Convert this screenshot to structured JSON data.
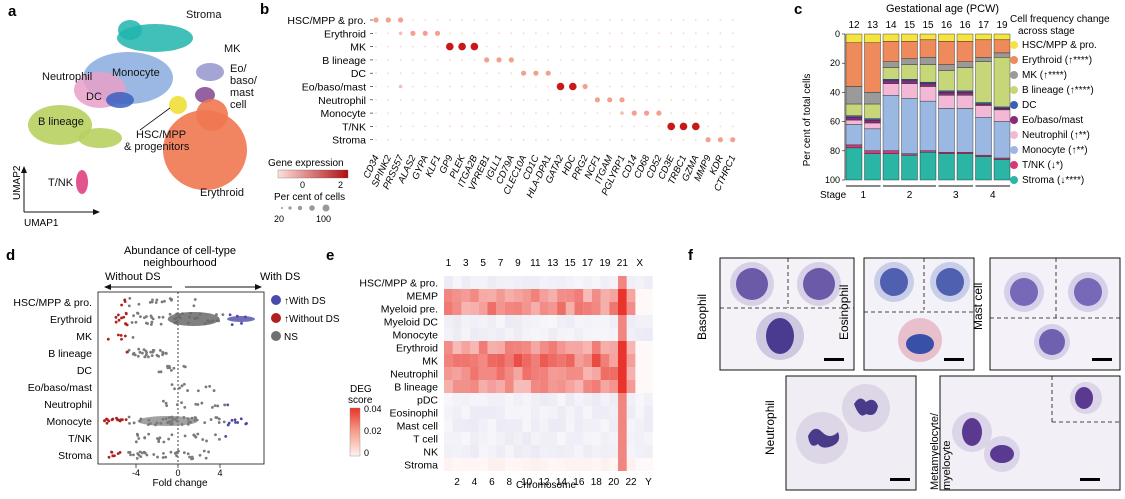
{
  "panel_letters": [
    "a",
    "b",
    "c",
    "d",
    "e",
    "f"
  ],
  "umap": {
    "axis_x": "UMAP1",
    "axis_y": "UMAP2",
    "labels": [
      {
        "text": "Stroma",
        "color": "#1fb5ad"
      },
      {
        "text": "MK",
        "color": "#8c8cc8"
      },
      {
        "text": "Eo/",
        "color": "#7a3a8a"
      },
      {
        "text": "baso/",
        "color": "#7a3a8a"
      },
      {
        "text": "mast",
        "color": "#7a3a8a"
      },
      {
        "text": "cell",
        "color": "#7a3a8a"
      },
      {
        "text": "Neutrophil",
        "color": "#e8a0c8"
      },
      {
        "text": "Monocyte",
        "color": "#8fb0e0"
      },
      {
        "text": "DC",
        "color": "#3a60c0"
      },
      {
        "text": "B lineage",
        "color": "#b8d060"
      },
      {
        "text": "HSC/MPP",
        "color": "#f0e040"
      },
      {
        "text": "& progenitors",
        "color": "#f0e040"
      },
      {
        "text": "T/NK",
        "color": "#e04080"
      },
      {
        "text": "Erythroid",
        "color": "#f07850"
      }
    ]
  },
  "dotplot": {
    "rows": [
      "HSC/MPP & pro.",
      "Erythroid",
      "MK",
      "B lineage",
      "DC",
      "Eo/baso/mast",
      "Neutrophil",
      "Monocyte",
      "T/NK",
      "Stroma"
    ],
    "genes": [
      "CD34",
      "SPINK2",
      "PRSS57",
      "ALAS2",
      "GYPA",
      "KLF1",
      "GP9",
      "PLEK",
      "ITGA2B",
      "VPREB1",
      "IGLL1",
      "CD79A",
      "CLEC10A",
      "CD1C",
      "HLA-DPA1",
      "GATA2",
      "HDC",
      "PRG2",
      "NCF1",
      "ITGAM",
      "PGLYRP1",
      "CD14",
      "CD68",
      "CD52",
      "CD3E",
      "TRBC1",
      "GZMA",
      "MMP9",
      "KDR",
      "CTHRC1"
    ],
    "legend_expression_title": "Gene expression",
    "legend_expression_ticks": [
      "0",
      "2"
    ],
    "legend_size_title": "Per cent of cells",
    "legend_size_ticks": [
      "20",
      "100"
    ]
  },
  "chart_data": [
    {
      "type": "bar",
      "stacked": true,
      "panel": "c",
      "title": "Gestational age (PCW)",
      "categories": [
        "12",
        "13",
        "14",
        "15",
        "15",
        "16",
        "16",
        "17",
        "19"
      ],
      "stage_label": "Stage",
      "stages": [
        {
          "label": "1",
          "span": [
            0,
            1
          ]
        },
        {
          "label": "2",
          "span": [
            2,
            4
          ]
        },
        {
          "label": "3",
          "span": [
            5,
            6
          ]
        },
        {
          "label": "4",
          "span": [
            7,
            8
          ]
        }
      ],
      "ylabel": "Per cent of total cells",
      "ylim": [
        0,
        100
      ],
      "y_inverted": true,
      "yticks": [
        "0",
        "20",
        "40",
        "60",
        "80",
        "100"
      ],
      "legend_title": "Cell frequency change across stage",
      "series": [
        {
          "name": "HSC/MPP & pro.",
          "color": "#f5e342",
          "values": [
            6,
            6,
            5,
            5,
            4,
            5,
            5,
            4,
            4
          ]
        },
        {
          "name": "Erythroid (↑****)",
          "color": "#ee8a5c",
          "values": [
            30,
            34,
            14,
            12,
            12,
            16,
            14,
            12,
            9
          ]
        },
        {
          "name": "MK (↑****)",
          "color": "#9a9a9a",
          "values": [
            12,
            8,
            4,
            4,
            5,
            4,
            4,
            3,
            3
          ]
        },
        {
          "name": "B lineage (↑****)",
          "color": "#c8d67a",
          "values": [
            8,
            10,
            8,
            10,
            12,
            14,
            16,
            28,
            34
          ]
        },
        {
          "name": "DC",
          "color": "#3b5fb8",
          "values": [
            1,
            1,
            1,
            1,
            1,
            1,
            1,
            1,
            1
          ]
        },
        {
          "name": "Eo/baso/mast",
          "color": "#8a2a78",
          "values": [
            2,
            2,
            2,
            2,
            2,
            2,
            2,
            1,
            1
          ]
        },
        {
          "name": "Neutrophil (↑**)",
          "color": "#f2b8d6",
          "values": [
            3,
            4,
            8,
            10,
            10,
            9,
            9,
            8,
            8
          ]
        },
        {
          "name": "Monocyte (↑**)",
          "color": "#9ab8e2",
          "values": [
            14,
            15,
            38,
            38,
            34,
            30,
            30,
            26,
            25
          ]
        },
        {
          "name": "T/NK (↓*)",
          "color": "#d8387a",
          "values": [
            2,
            2,
            2,
            1,
            1,
            1,
            1,
            1,
            1
          ]
        },
        {
          "name": "Stroma (↓****)",
          "color": "#2ab5a5",
          "values": [
            22,
            18,
            18,
            17,
            19,
            18,
            18,
            16,
            14
          ]
        }
      ]
    },
    {
      "type": "scatter",
      "panel": "d",
      "title": "Abundance of cell-type neighbourhood",
      "annot_left": "Without DS",
      "annot_right": "With DS",
      "xlabel": "Fold change",
      "xlim": [
        -8,
        8
      ],
      "xticks": [
        "-4",
        "0",
        "4"
      ],
      "categories": [
        "HSC/MPP & pro.",
        "Erythroid",
        "MK",
        "B lineage",
        "DC",
        "Eo/baso/mast",
        "Neutrophil",
        "Monocyte",
        "T/NK",
        "Stroma"
      ],
      "legend": [
        {
          "name": "↑With DS",
          "color": "#4a4aa8"
        },
        {
          "name": "↑Without DS",
          "color": "#b02020"
        },
        {
          "name": "NS",
          "color": "#707070"
        }
      ]
    },
    {
      "type": "heatmap",
      "panel": "e",
      "xlabel": "Chromosome",
      "xticks_top": [
        "1",
        "3",
        "5",
        "7",
        "9",
        "11",
        "13",
        "15",
        "17",
        "19",
        "21",
        "X"
      ],
      "xticks_bottom": [
        "2",
        "4",
        "6",
        "8",
        "10",
        "12",
        "14",
        "16",
        "18",
        "20",
        "22",
        "Y"
      ],
      "rows": [
        "HSC/MPP & pro.",
        "MEMP",
        "Myeloid pre.",
        "Myeloid DC",
        "Monocyte",
        "Erythroid",
        "MK",
        "Neutrophil",
        "B lineage",
        "pDC",
        "Eosinophil",
        "Mast cell",
        "T cell",
        "NK",
        "Stroma"
      ],
      "colorbar_title": "DEG score",
      "colorbar_ticks": [
        "0.04",
        "0.02",
        "0"
      ],
      "zlim": [
        0,
        0.04
      ]
    }
  ],
  "micrographs": {
    "labels": [
      "Basophil",
      "Eosinophil",
      "Mast cell",
      "Neutrophil",
      "Metamyelocyte/ myelocyte"
    ]
  }
}
